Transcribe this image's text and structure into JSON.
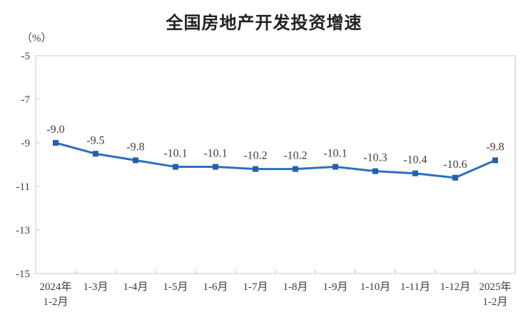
{
  "chart_data": {
    "type": "line",
    "title": "全国房地产开发投资增速",
    "unit_label": "（%）",
    "categories": [
      "2024年\n1-2月",
      "1-3月",
      "1-4月",
      "1-5月",
      "1-6月",
      "1-7月",
      "1-8月",
      "1-9月",
      "1-10月",
      "1-11月",
      "1-12月",
      "2025年\n1-2月"
    ],
    "values": [
      -9.0,
      -9.5,
      -9.8,
      -10.1,
      -10.1,
      -10.2,
      -10.2,
      -10.1,
      -10.3,
      -10.4,
      -10.6,
      -9.8
    ],
    "labels": [
      "-9.0",
      "-9.5",
      "-9.8",
      "-10.1",
      "-10.1",
      "-10.2",
      "-10.2",
      "-10.1",
      "-10.3",
      "-10.4",
      "-10.6",
      "-9.8"
    ],
    "ylim": [
      -15,
      -5
    ],
    "yticks": [
      -5,
      -7,
      -9,
      -11,
      -13,
      -15
    ],
    "grid": false,
    "legend": "none",
    "colors": {
      "line": "#2E6FBF",
      "marker": "#2360AE",
      "axis": "#C4C4C4",
      "text": "#3D3D3D",
      "title": "#222222"
    }
  }
}
